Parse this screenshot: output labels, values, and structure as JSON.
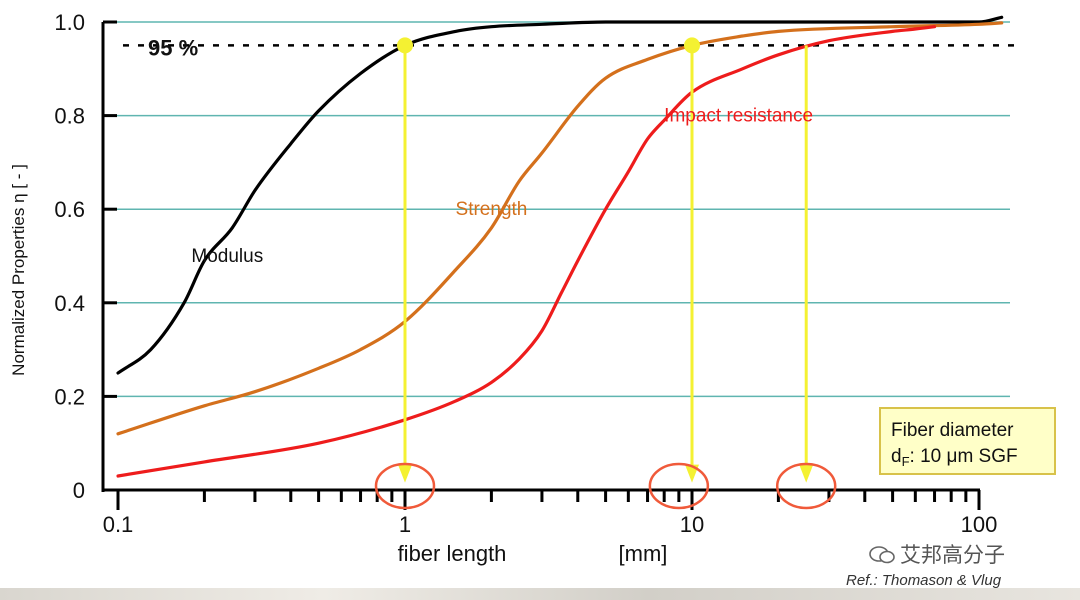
{
  "chart_data": {
    "type": "line",
    "x_scale": "log",
    "xlim": [
      0.1,
      100
    ],
    "ylim": [
      0,
      1.0
    ],
    "xlabel": "fiber length",
    "xunit": "[mm]",
    "ylabel": "Normalized Properties  η  [ - ]",
    "x_ticks": [
      0.1,
      1,
      10,
      100
    ],
    "x_tick_labels": [
      "0.1",
      "1",
      "10",
      "100"
    ],
    "y_ticks": [
      0,
      0.2,
      0.4,
      0.6,
      0.8,
      1.0
    ],
    "y_tick_labels": [
      "0",
      "0.2",
      "0.4",
      "0.6",
      "0.8",
      "1.0"
    ],
    "grid": "horizontal",
    "threshold": {
      "value": 0.95,
      "label": "95 %"
    },
    "series": [
      {
        "name": "Modulus",
        "color": "#000000",
        "x": [
          0.1,
          0.13,
          0.17,
          0.2,
          0.25,
          0.3,
          0.4,
          0.5,
          0.7,
          1,
          1.5,
          2,
          3,
          5,
          10,
          20,
          50,
          100,
          120
        ],
        "y": [
          0.25,
          0.3,
          0.4,
          0.49,
          0.56,
          0.64,
          0.74,
          0.81,
          0.89,
          0.95,
          0.98,
          0.99,
          0.995,
          1.0,
          1.0,
          1.0,
          1.0,
          1.0,
          1.01
        ]
      },
      {
        "name": "Strength",
        "color": "#d4701c",
        "x": [
          0.1,
          0.2,
          0.3,
          0.5,
          0.7,
          1,
          1.5,
          2,
          2.5,
          3,
          4,
          5,
          7,
          10,
          15,
          20,
          50,
          100,
          120
        ],
        "y": [
          0.12,
          0.18,
          0.21,
          0.26,
          0.3,
          0.36,
          0.47,
          0.56,
          0.66,
          0.72,
          0.82,
          0.88,
          0.92,
          0.95,
          0.97,
          0.98,
          0.99,
          0.995,
          0.998
        ]
      },
      {
        "name": "Impact resistance",
        "color": "#ee1c1c",
        "x": [
          0.1,
          0.2,
          0.5,
          1,
          1.5,
          2,
          2.5,
          3,
          3.5,
          4,
          5,
          6,
          7,
          8,
          10,
          15,
          20,
          30,
          50,
          60,
          70
        ],
        "y": [
          0.03,
          0.06,
          0.1,
          0.15,
          0.19,
          0.23,
          0.28,
          0.34,
          0.42,
          0.49,
          0.6,
          0.68,
          0.75,
          0.79,
          0.85,
          0.9,
          0.93,
          0.96,
          0.98,
          0.985,
          0.99
        ]
      }
    ],
    "markers": [
      {
        "x": 1,
        "y": 0.95
      },
      {
        "x": 10,
        "y": 0.95
      }
    ],
    "arrows": [
      {
        "x": 1,
        "y_from": 0.95,
        "y_to": 0.02
      },
      {
        "x": 10,
        "y_from": 0.95,
        "y_to": 0.02
      },
      {
        "x": 25,
        "y_from": 0.95,
        "y_to": 0.02
      }
    ],
    "highlight_circles_x": [
      1,
      9,
      25
    ],
    "series_labels": [
      {
        "text": "Modulus",
        "x": 0.2,
        "y": 0.5
      },
      {
        "text": "Strength",
        "x": 1.5,
        "y": 0.6
      },
      {
        "text": "Impact resistance",
        "x": 8,
        "y": 0.8
      }
    ]
  },
  "info_box": {
    "line1": "Fiber diameter",
    "line2_main": "d",
    "line2_sub": "F",
    "line2_rest": ": 10 μm SGF"
  },
  "reference": "Ref.: Thomason & Vlug",
  "watermark": "艾邦高分子"
}
